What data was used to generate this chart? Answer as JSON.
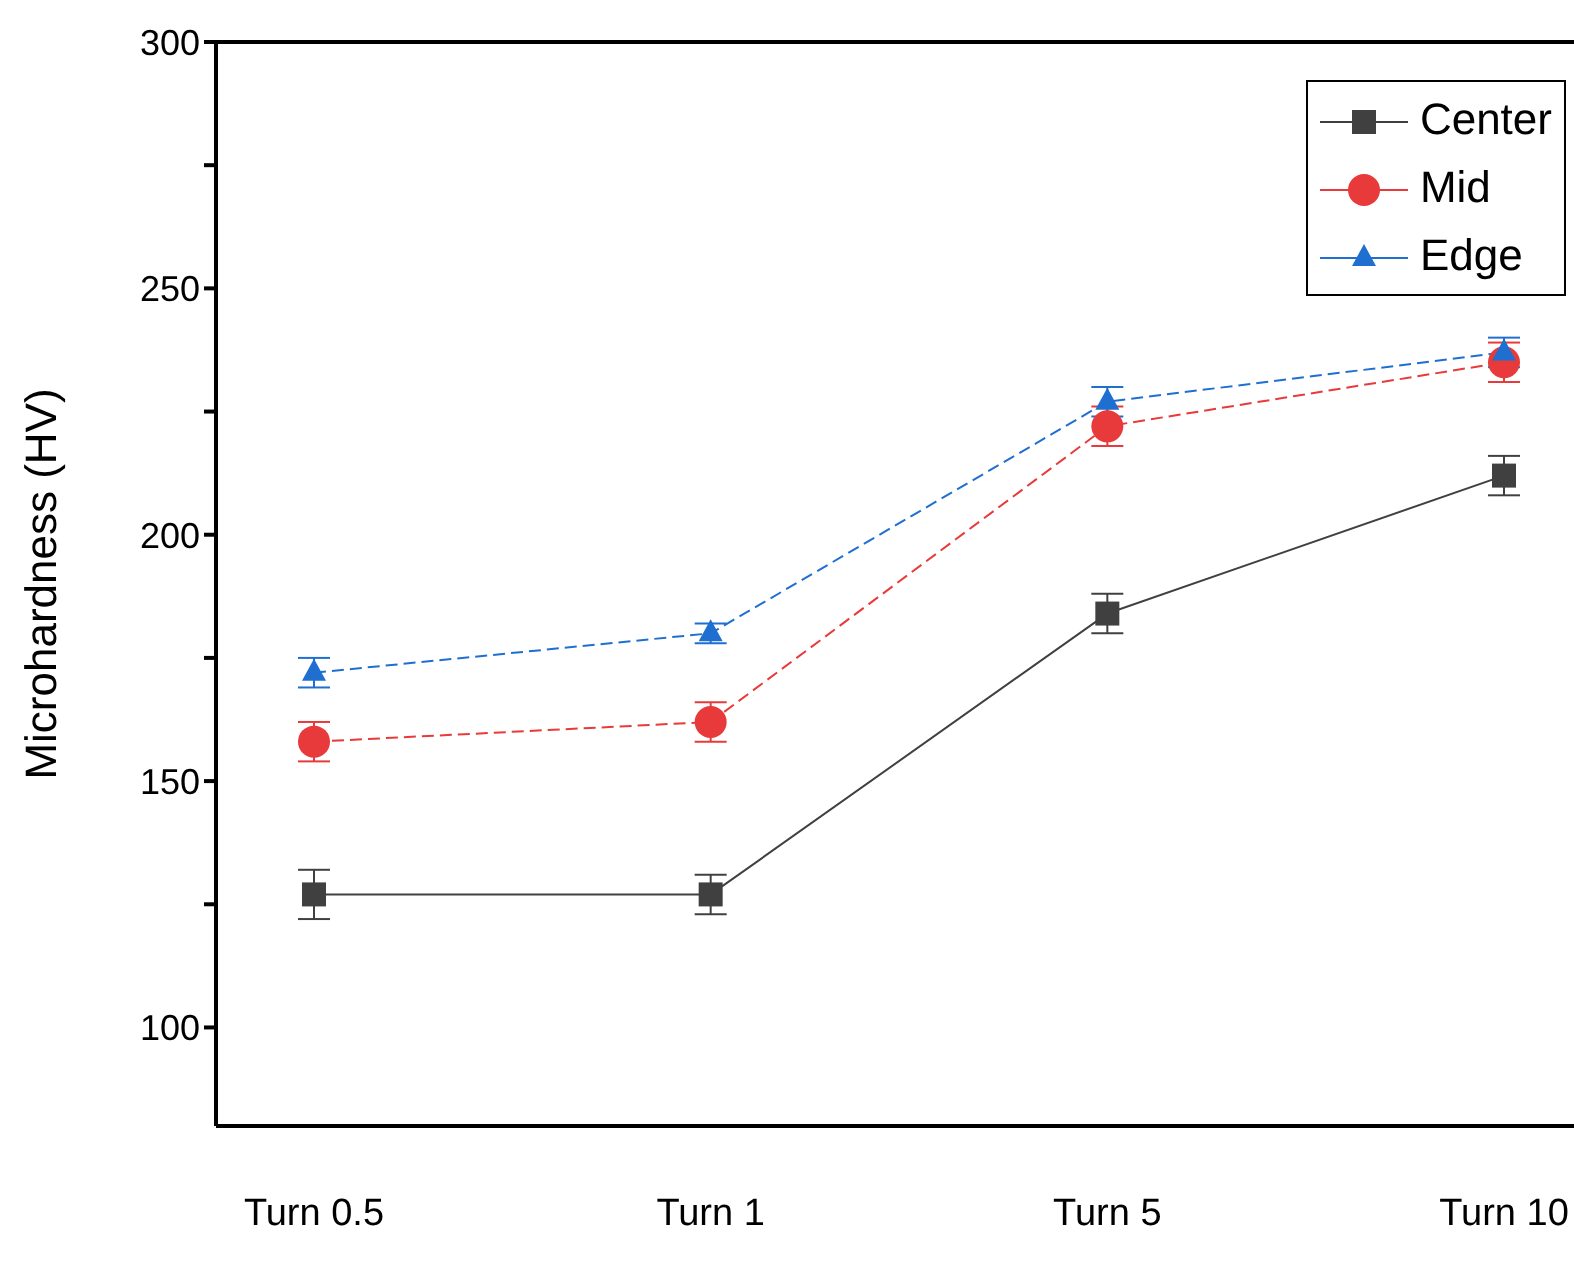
{
  "chart_data": {
    "type": "line",
    "ylabel": "Microhardness (HV)",
    "categories": [
      "Turn 0.5",
      "Turn 1",
      "Turn 5",
      "Turn 10"
    ],
    "series": [
      {
        "name": "Center",
        "color": "#404040",
        "marker": "square",
        "line_style": "solid",
        "values": [
          127,
          127,
          184,
          212
        ],
        "errors": [
          5,
          4,
          4,
          4
        ]
      },
      {
        "name": "Mid",
        "color": "#e83a3a",
        "marker": "circle",
        "line_style": "dashed",
        "values": [
          158,
          162,
          222,
          235
        ],
        "errors": [
          4,
          4,
          4,
          4
        ]
      },
      {
        "name": "Edge",
        "color": "#1f6fd1",
        "marker": "triangle",
        "line_style": "dashed",
        "values": [
          172,
          180,
          227,
          237
        ],
        "errors": [
          3,
          2,
          3,
          3
        ]
      }
    ],
    "ylim": [
      80,
      300
    ],
    "yticks": [
      {
        "value": 100,
        "label": "100"
      },
      {
        "value": 125,
        "label": null
      },
      {
        "value": 150,
        "label": "150"
      },
      {
        "value": 175,
        "label": null
      },
      {
        "value": 200,
        "label": "200"
      },
      {
        "value": 225,
        "label": null
      },
      {
        "value": 250,
        "label": "250"
      },
      {
        "value": 275,
        "label": null
      },
      {
        "value": 300,
        "label": "300"
      }
    ],
    "grid": false,
    "legend": "top right"
  }
}
